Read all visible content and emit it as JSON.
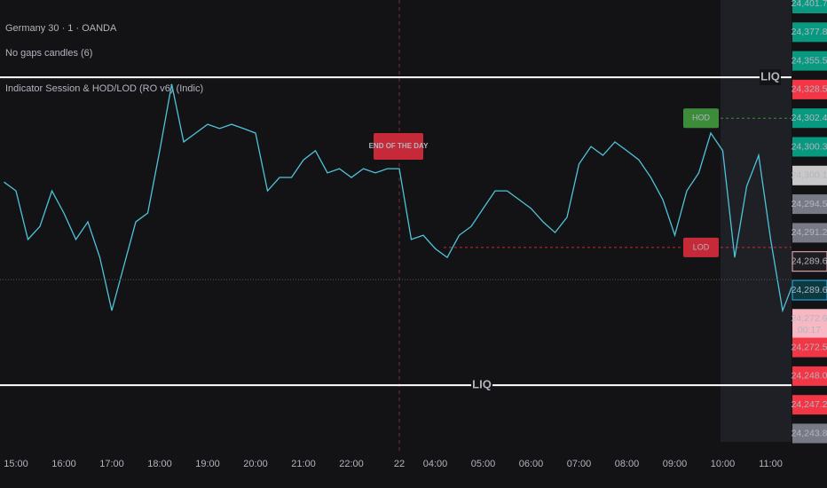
{
  "chart_data": {
    "type": "line",
    "title": "Germany 30 · 1 · OANDA",
    "subtitles": [
      "No gaps candles (6)",
      "Indicator Session & HOD/LOD (RO v6) (Indic)"
    ],
    "categories": [
      null,
      "15:00",
      null,
      null,
      null,
      "16:00",
      null,
      null,
      null,
      "17:00",
      null,
      null,
      null,
      "18:00",
      null,
      null,
      null,
      "19:00",
      null,
      null,
      null,
      "20:00",
      null,
      null,
      null,
      "21:00",
      null,
      null,
      null,
      "22:00",
      null,
      null,
      null,
      "22",
      null,
      null,
      "04:00",
      null,
      null,
      null,
      "05:00",
      null,
      null,
      null,
      "06:00",
      null,
      null,
      null,
      "07:00",
      null,
      null,
      null,
      "08:00",
      null,
      null,
      null,
      "09:00",
      null,
      null,
      null,
      "10:00",
      null,
      null,
      null,
      "11:00",
      null,
      null
    ],
    "series": [
      {
        "name": "Germany 30",
        "color": "#4fc3d9",
        "values": [
          24301.1,
          24298.8,
          24286.1,
          24289.5,
          24298.8,
          24293.0,
          24286.1,
          24290.7,
          24281.4,
          24267.5,
          24279.1,
          24290.7,
          24293.0,
          24309.3,
          24326.7,
          24311.6,
          24313.9,
          24316.2,
          24315.1,
          24316.2,
          24315.1,
          24313.9,
          24298.8,
          24302.3,
          24302.3,
          24306.9,
          24309.3,
          24303.5,
          24304.6,
          24302.3,
          24304.6,
          24303.5,
          24304.6,
          24304.6,
          24286.1,
          24287.2,
          24283.7,
          24281.4,
          24287.2,
          24289.5,
          24294.2,
          24298.8,
          24298.8,
          24296.5,
          24294.2,
          24290.7,
          24287.9,
          24291.9,
          24305.8,
          24310.4,
          24308.1,
          24311.6,
          24309.3,
          24306.9,
          24302.3,
          24296.5,
          24287.2,
          24298.8,
          24303.5,
          24313.9,
          24309.3,
          24281.4,
          24300.0,
          24308.1,
          24286.1,
          24267.5,
          24275.6
        ]
      }
    ],
    "ylim": [
      24230.4,
      24348.7
    ],
    "hlines": [
      {
        "value": 24328.5,
        "label": "LIQ"
      },
      {
        "value": 24248.0,
        "label": "LIQ"
      }
    ],
    "hod": {
      "label": "HOD",
      "value": 24317.8,
      "color": "#3d8c3a"
    },
    "lod": {
      "label": "LOD",
      "value": 24284.0,
      "color": "#c62a39"
    },
    "event": {
      "label": "END OF THE DAY",
      "index": 33
    },
    "price_tags": [
      {
        "label": "24,401.7",
        "color": "#089981"
      },
      {
        "label": "24,377.8",
        "color": "#089981"
      },
      {
        "label": "24,355.5",
        "color": "#089981"
      },
      {
        "label": "24,328.5",
        "color": "#f23645"
      },
      {
        "label": "24,302.4",
        "color": "#089981"
      },
      {
        "label": "24,300.3",
        "color": "#089981"
      },
      {
        "label": "24,300.1",
        "color": "#c8c8c8"
      },
      {
        "label": "24,294.5",
        "color": "#787b86"
      },
      {
        "label": "24,291.2",
        "color": "#787b86"
      },
      {
        "label": "24,289.6",
        "color": "#1e1e22"
      },
      {
        "label": "24,289.6",
        "color": "#0b3a40"
      },
      {
        "label": "24,272.6",
        "sub": "00:17",
        "color": "#f7b8c4"
      },
      {
        "label": "24,272.5",
        "color": "#f23645"
      },
      {
        "label": "24,248.0",
        "color": "#f23645"
      },
      {
        "label": "24,247.2",
        "color": "#f23645"
      },
      {
        "label": "24,243.8",
        "color": "#787b86"
      }
    ]
  }
}
